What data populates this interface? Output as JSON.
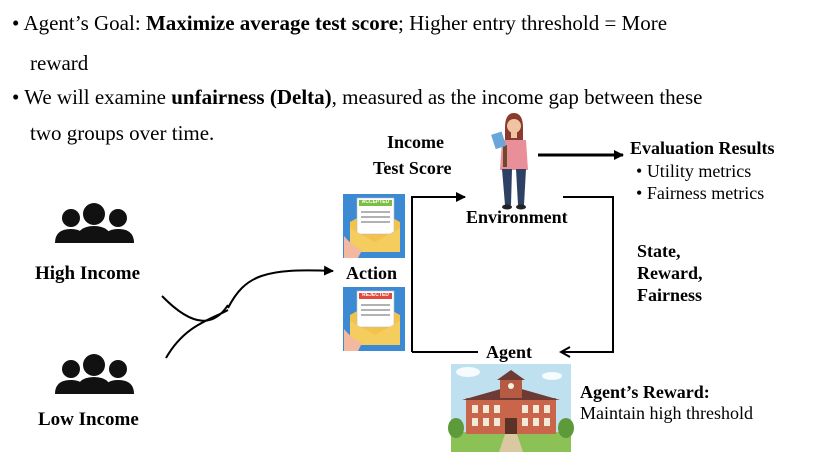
{
  "bullets": {
    "goal": {
      "prefix": "• Agent’s Goal: ",
      "bold": "Maximize average test score",
      "suffix": "; Higher entry threshold = More",
      "cont": "reward"
    },
    "fairness": {
      "prefix": "• We will examine ",
      "bold": "unfairness (Delta)",
      "suffix": ", measured as the income gap between these",
      "cont": "two groups over time."
    }
  },
  "diagram": {
    "inputs": {
      "line1": "Income",
      "line2": "Test Score"
    },
    "environment": "Environment",
    "evaluation": {
      "title": "Evaluation Results",
      "items": [
        "Utility metrics",
        "Fairness metrics"
      ]
    },
    "feedback": {
      "line1": "State,",
      "line2": "Reward,",
      "line3": "Fairness"
    },
    "action": "Action",
    "agent": "Agent",
    "groups": {
      "high": "High Income",
      "low": "Low Income"
    },
    "reward": {
      "title": "Agent’s Reward:",
      "text": "Maintain high threshold"
    },
    "cards": {
      "accepted": "ACCEPTED",
      "rejected": "REJECTED"
    }
  }
}
